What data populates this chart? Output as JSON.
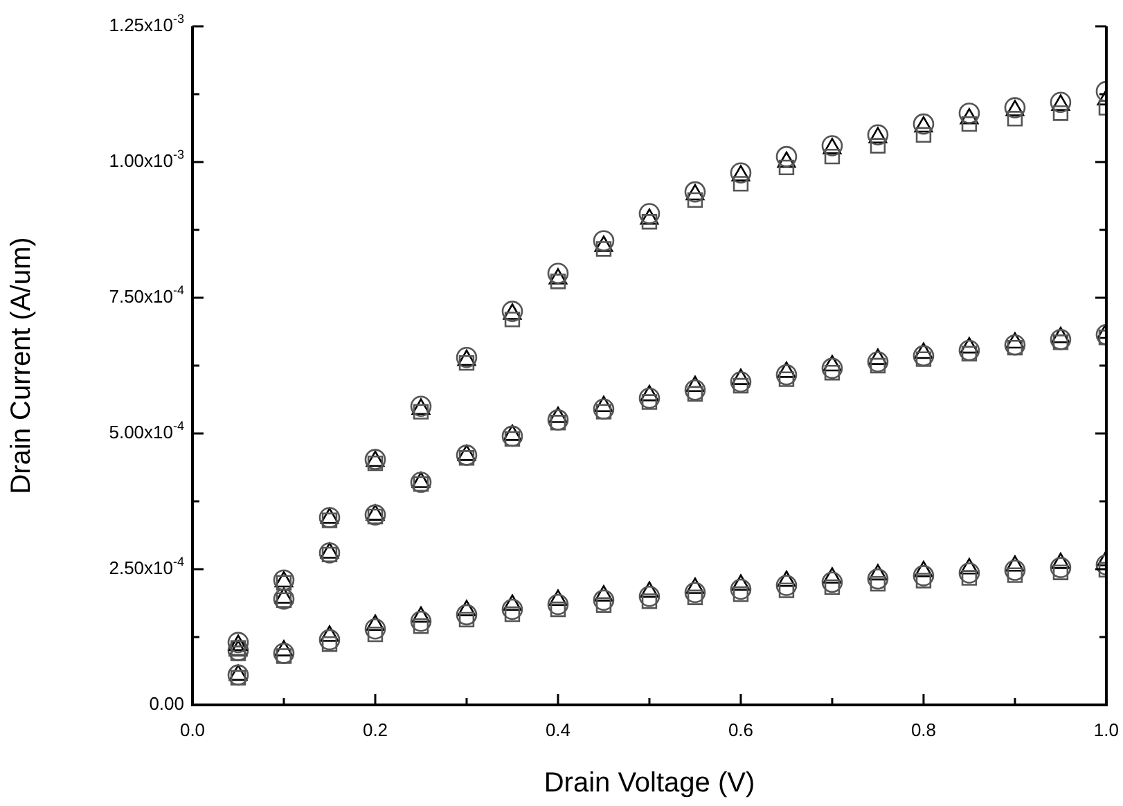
{
  "chart_data": {
    "type": "scatter",
    "xlabel": "Drain Voltage (V)",
    "ylabel": "Drain Current (A/um)",
    "x": [
      0.05,
      0.1,
      0.15,
      0.2,
      0.25,
      0.3,
      0.35,
      0.4,
      0.45,
      0.5,
      0.55,
      0.6,
      0.65,
      0.7,
      0.75,
      0.8,
      0.85,
      0.9,
      0.95,
      1.0
    ],
    "xlim": [
      0,
      1.0
    ],
    "xticks": [
      {
        "value": 0,
        "label": "0.0"
      },
      {
        "value": 0.1,
        "label": null
      },
      {
        "value": 0.2,
        "label": "0.2"
      },
      {
        "value": 0.3,
        "label": null
      },
      {
        "value": 0.4,
        "label": "0.4"
      },
      {
        "value": 0.5,
        "label": null
      },
      {
        "value": 0.6,
        "label": "0.6"
      },
      {
        "value": 0.7,
        "label": null
      },
      {
        "value": 0.8,
        "label": "0.8"
      },
      {
        "value": 0.9,
        "label": null
      },
      {
        "value": 1.0,
        "label": "1.0"
      }
    ],
    "ylim": [
      0,
      0.00125
    ],
    "yticks": [
      {
        "value": 0,
        "label": "0.00"
      },
      {
        "value": 0.000125,
        "label": null
      },
      {
        "value": 0.00025,
        "label": "2.50x10$^{-4}$"
      },
      {
        "value": 0.000375,
        "label": null
      },
      {
        "value": 0.0005,
        "label": "5.00x10$^{-4}$"
      },
      {
        "value": 0.000625,
        "label": null
      },
      {
        "value": 0.00075,
        "label": "7.50x10$^{-4}$"
      },
      {
        "value": 0.000875,
        "label": null
      },
      {
        "value": 0.001,
        "label": "1.00x10$^{-3}$"
      },
      {
        "value": 0.001125,
        "label": null
      },
      {
        "value": 0.00125,
        "label": "1.25x10$^{-3}$"
      }
    ],
    "legend": false,
    "series": [
      {
        "color": "#555555",
        "marker": "circle",
        "values": [
          0.000115,
          0.00023,
          0.000345,
          0.000452,
          0.00055,
          0.00064,
          0.000725,
          0.000795,
          0.000855,
          0.000905,
          0.000945,
          0.00098,
          0.00101,
          0.00103,
          0.00105,
          0.00107,
          0.00109,
          0.0011,
          0.00111,
          0.00113
        ]
      },
      {
        "color": "#555555",
        "marker": "square",
        "values": [
          0.000105,
          0.000225,
          0.00034,
          0.000445,
          0.00054,
          0.00063,
          0.00071,
          0.00078,
          0.00084,
          0.00089,
          0.00093,
          0.00096,
          0.00099,
          0.00101,
          0.00103,
          0.00105,
          0.00107,
          0.00108,
          0.00109,
          0.0011
        ]
      },
      {
        "color": "#000000",
        "marker": "triangle",
        "values": [
          0.00011,
          0.000227,
          0.000344,
          0.000449,
          0.000545,
          0.000635,
          0.00072,
          0.000785,
          0.000845,
          0.000895,
          0.00094,
          0.000975,
          0.001,
          0.001025,
          0.001045,
          0.001065,
          0.00108,
          0.001095,
          0.001105,
          0.001115
        ]
      },
      {
        "color": "#555555",
        "marker": "circle",
        "values": [
          0.0001,
          0.000195,
          0.00028,
          0.00035,
          0.00041,
          0.00046,
          0.000495,
          0.000525,
          0.000545,
          0.000565,
          0.00058,
          0.000595,
          0.000608,
          0.00062,
          0.000632,
          0.000643,
          0.000653,
          0.000663,
          0.000673,
          0.000682
        ]
      },
      {
        "color": "#555555",
        "marker": "square",
        "values": [
          9.5e-05,
          0.000193,
          0.000277,
          0.000347,
          0.000407,
          0.000455,
          0.00049,
          0.00052,
          0.00054,
          0.000558,
          0.000573,
          0.000588,
          0.0006,
          0.000612,
          0.000625,
          0.000637,
          0.000647,
          0.000658,
          0.000668,
          0.000677
        ]
      },
      {
        "color": "#000000",
        "marker": "triangle",
        "values": [
          0.0001,
          0.000197,
          0.00028,
          0.00035,
          0.00041,
          0.00046,
          0.000497,
          0.00053,
          0.00055,
          0.00057,
          0.000587,
          0.0006,
          0.000613,
          0.000625,
          0.000637,
          0.000648,
          0.000658,
          0.000667,
          0.000677,
          0.000685
        ]
      },
      {
        "color": "#555555",
        "marker": "circle",
        "values": [
          5.5e-05,
          9.5e-05,
          0.00012,
          0.00014,
          0.000154,
          0.000166,
          0.000176,
          0.000185,
          0.000193,
          0.0002,
          0.000207,
          0.000213,
          0.00022,
          0.000226,
          0.000232,
          0.000238,
          0.000243,
          0.000248,
          0.000253,
          0.000258
        ]
      },
      {
        "color": "#555555",
        "marker": "square",
        "values": [
          5e-05,
          9e-05,
          0.000112,
          0.00013,
          0.000145,
          0.000157,
          0.000167,
          0.000176,
          0.000184,
          0.000191,
          0.000198,
          0.000204,
          0.000211,
          0.000217,
          0.000223,
          0.000229,
          0.000234,
          0.000239,
          0.000244,
          0.000249
        ]
      },
      {
        "color": "#000000",
        "marker": "triangle",
        "values": [
          5.5e-05,
          0.0001,
          0.000127,
          0.000147,
          0.000162,
          0.000174,
          0.000184,
          0.000193,
          0.000201,
          0.000208,
          0.000215,
          0.000221,
          0.000228,
          0.000234,
          0.00024,
          0.000246,
          0.000251,
          0.000256,
          0.000261,
          0.000266
        ]
      }
    ]
  }
}
